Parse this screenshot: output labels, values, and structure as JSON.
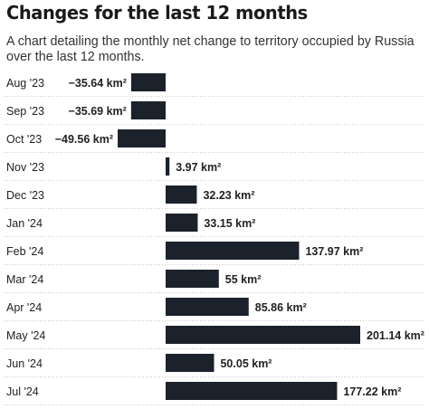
{
  "title": "Changes for the last 12 months",
  "subtitle": "A chart detailing the monthly net change to territory occupied by Russia over the last 12 months.",
  "colors": {
    "bar": "#1c222b",
    "text": "#222222",
    "divider": "#c8c8c8"
  },
  "chart_data": {
    "type": "bar",
    "orientation": "horizontal",
    "categories": [
      "Aug '23",
      "Sep '23",
      "Oct '23",
      "Nov '23",
      "Dec '23",
      "Jan '24",
      "Feb '24",
      "Mar '24",
      "Apr '24",
      "May '24",
      "Jun '24",
      "Jul '24"
    ],
    "values": [
      -35.64,
      -35.69,
      -49.56,
      3.97,
      32.23,
      33.15,
      137.97,
      55,
      85.86,
      201.14,
      50.05,
      177.22
    ],
    "value_labels": [
      "−35.64 km²",
      "−35.69 km²",
      "−49.56 km²",
      "3.97 km²",
      "32.23 km²",
      "33.15 km²",
      "137.97 km²",
      "55 km²",
      "85.86 km²",
      "201.14 km²",
      "50.05 km²",
      "177.22 km²"
    ],
    "unit": "km²",
    "grid": false,
    "row_dividers": true
  }
}
